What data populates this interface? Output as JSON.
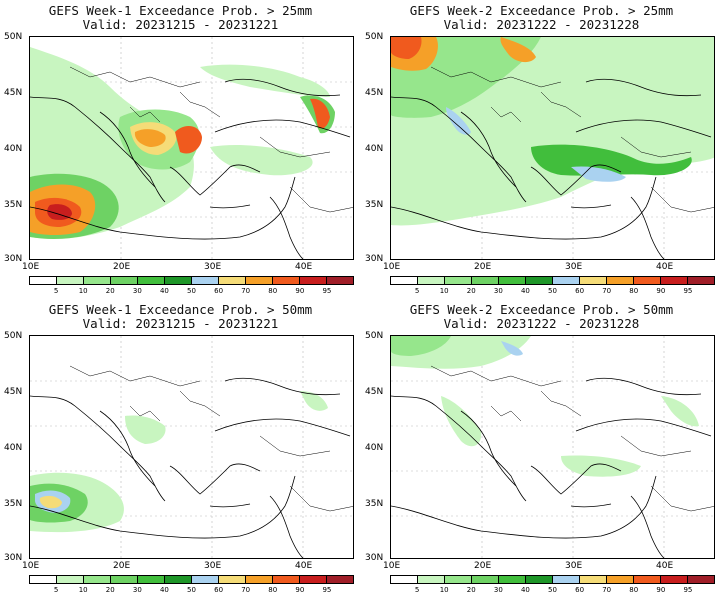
{
  "panels": [
    {
      "title": "GEFS Week-1 Exceedance Prob. > 25mm",
      "valid": "Valid: 20231215 - 20231221"
    },
    {
      "title": "GEFS Week-2 Exceedance Prob. > 25mm",
      "valid": "Valid: 20231222 - 20231228"
    },
    {
      "title": "GEFS Week-1 Exceedance Prob. > 50mm",
      "valid": "Valid: 20231215 - 20231221"
    },
    {
      "title": "GEFS Week-2 Exceedance Prob. > 50mm",
      "valid": "Valid: 20231222 - 20231228"
    }
  ],
  "lat_labels": [
    "50N",
    "45N",
    "40N",
    "35N",
    "30N"
  ],
  "lon_labels": [
    "10E",
    "20E",
    "30E",
    "40E"
  ],
  "colorbar": {
    "ticks": [
      "5",
      "10",
      "20",
      "30",
      "40",
      "50",
      "60",
      "70",
      "80",
      "90",
      "95"
    ],
    "colors": [
      "#ffffff",
      "#c8f5c0",
      "#96e68c",
      "#6ed264",
      "#41be3c",
      "#1e9628",
      "#aad2f0",
      "#f5dc78",
      "#f5a028",
      "#f05a1e",
      "#c81e1e",
      "#a01e28"
    ]
  }
}
